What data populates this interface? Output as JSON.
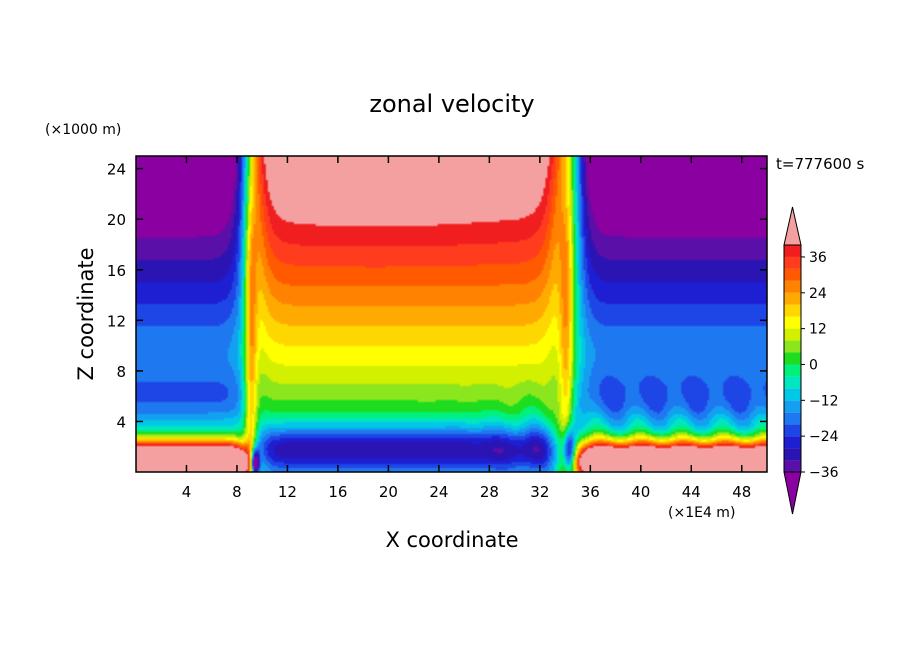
{
  "chart_data": {
    "type": "heatmap",
    "title": "zonal velocity",
    "xlabel": "X coordinate",
    "ylabel": "Z coordinate",
    "x_units": "(×1E4 m)",
    "y_units": "(×1000 m)",
    "time_label": "t=777600 s",
    "xlim": [
      0,
      50
    ],
    "ylim": [
      0,
      25
    ],
    "x_ticks": [
      4,
      8,
      12,
      16,
      20,
      24,
      28,
      32,
      36,
      40,
      44,
      48
    ],
    "y_ticks": [
      4,
      8,
      12,
      16,
      20,
      24
    ],
    "colorbar": {
      "ticks": [
        36,
        24,
        12,
        0,
        -12,
        -24,
        -36
      ],
      "levels": [
        -40,
        -36,
        -32,
        -28,
        -24,
        -20,
        -16,
        -12,
        -8,
        -4,
        0,
        4,
        8,
        12,
        16,
        20,
        24,
        28,
        32,
        36,
        40
      ],
      "colors": [
        "#8B00A0",
        "#5A0FA8",
        "#2B14B4",
        "#1E1ED2",
        "#1E46E6",
        "#1E78F0",
        "#14A0F0",
        "#00C8E6",
        "#00E6C0",
        "#00F07A",
        "#1EDC1E",
        "#8CE61E",
        "#D2F000",
        "#FFFF00",
        "#FFD700",
        "#FFAA00",
        "#FF8200",
        "#FF5A00",
        "#FF3C1E",
        "#F01E1E",
        "#F5A0A0"
      ],
      "extend": "both"
    },
    "field_summary": "Jets near x=9 and x=34 (x1E4 m); strong positive (>40) upper core between x=12 and x=28 at z=17-24; negative (<-40) upper corners for x<8 and x>36; positive near-surface flow at the left and right ends; negative layer near z=1-3 between x=12 and x=34"
  }
}
